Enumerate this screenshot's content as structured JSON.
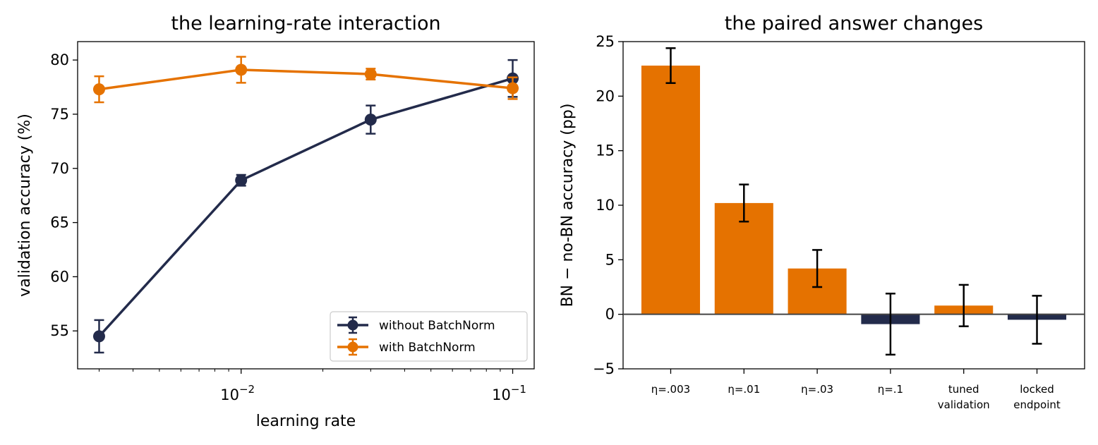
{
  "chart_data": [
    {
      "type": "line",
      "title": "the learning-rate interaction",
      "xlabel": "learning rate",
      "ylabel": "validation accuracy (%)",
      "x_scale": "log",
      "xlim": [
        0.0025,
        0.12
      ],
      "ylim": [
        51.5,
        81.7
      ],
      "x_tick_labels": [
        {
          "value": 0.01,
          "base": "10",
          "exp": "−2"
        },
        {
          "value": 0.1,
          "base": "10",
          "exp": "−1"
        }
      ],
      "y_ticks": [
        55,
        60,
        65,
        70,
        75,
        80
      ],
      "legend_position": "lower right",
      "x": [
        0.003,
        0.01,
        0.03,
        0.1
      ],
      "series": [
        {
          "name": "without BatchNorm",
          "color": "#232b4b",
          "values": [
            54.5,
            68.9,
            74.5,
            78.3
          ],
          "err": [
            1.5,
            0.5,
            1.3,
            1.7
          ]
        },
        {
          "name": "with BatchNorm",
          "color": "#e57200",
          "values": [
            77.3,
            79.1,
            78.7,
            77.4
          ],
          "err": [
            1.2,
            1.2,
            0.5,
            1.0
          ]
        }
      ]
    },
    {
      "type": "bar",
      "title": "the paired answer changes",
      "ylabel": "BN − no-BN accuracy (pp)",
      "ylim": [
        -5,
        25
      ],
      "y_ticks": [
        -5,
        0,
        5,
        10,
        15,
        20,
        25
      ],
      "y_tick_labels": [
        "−5",
        "0",
        "5",
        "10",
        "15",
        "20",
        "25"
      ],
      "categories": [
        [
          "η=.003"
        ],
        [
          "η=.01"
        ],
        [
          "η=.03"
        ],
        [
          "η=.1"
        ],
        [
          "tuned",
          "validation"
        ],
        [
          "locked",
          "endpoint"
        ]
      ],
      "values": [
        22.8,
        10.2,
        4.2,
        -0.9,
        0.8,
        -0.5
      ],
      "err": [
        1.6,
        1.7,
        1.7,
        2.8,
        1.9,
        2.2
      ],
      "colors": [
        "#e57200",
        "#e57200",
        "#e57200",
        "#232b4b",
        "#e57200",
        "#232b4b"
      ]
    }
  ]
}
